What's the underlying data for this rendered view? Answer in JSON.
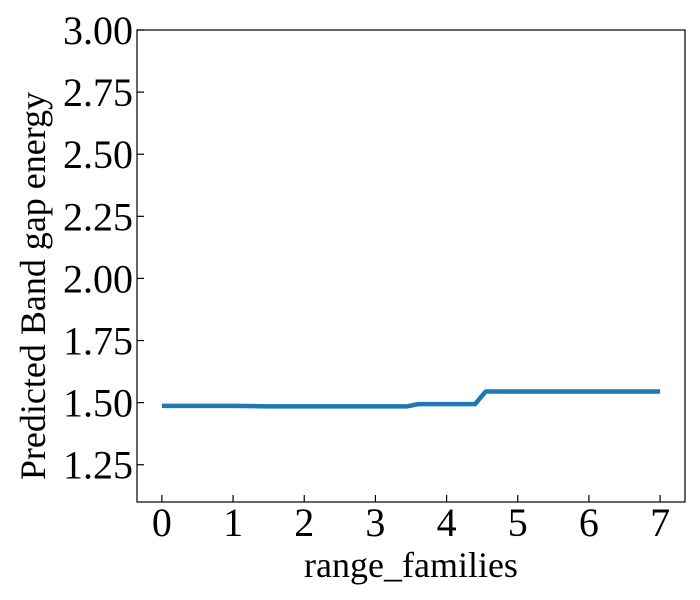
{
  "chart_data": {
    "type": "line",
    "title": "",
    "xlabel": "range_families",
    "ylabel": "Predicted Band gap energy",
    "xlim": [
      -0.35,
      7.35
    ],
    "ylim": [
      1.1,
      3.0
    ],
    "x_ticks": [
      0,
      1,
      2,
      3,
      4,
      5,
      6,
      7
    ],
    "y_ticks": [
      1.25,
      1.5,
      1.75,
      2.0,
      2.25,
      2.5,
      2.75,
      3.0
    ],
    "x_tick_labels": [
      "0",
      "1",
      "2",
      "3",
      "4",
      "5",
      "6",
      "7"
    ],
    "y_tick_labels": [
      "1.25",
      "1.50",
      "1.75",
      "2.00",
      "2.25",
      "2.50",
      "2.75",
      "3.00"
    ],
    "grid": false,
    "legend": "none",
    "series": [
      {
        "color": "#1f77b4",
        "x": [
          0,
          1,
          1.5,
          2,
          3,
          3.45,
          3.6,
          4.4,
          4.55,
          5,
          6,
          7
        ],
        "y": [
          1.487,
          1.487,
          1.485,
          1.485,
          1.485,
          1.485,
          1.494,
          1.494,
          1.545,
          1.545,
          1.545,
          1.545
        ]
      }
    ]
  }
}
